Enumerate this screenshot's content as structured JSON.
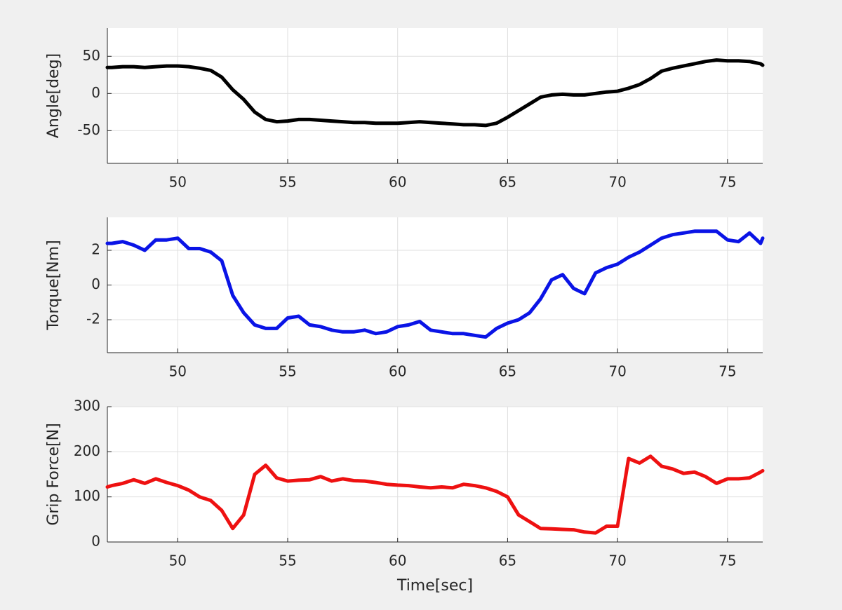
{
  "chart_data": [
    {
      "type": "line",
      "ylabel": "Angle[deg]",
      "xlim": [
        46.8,
        76.6
      ],
      "ylim": [
        -94,
        88
      ],
      "xticks": [
        50,
        55,
        60,
        65,
        70,
        75
      ],
      "yticks": [
        -50,
        0,
        50
      ],
      "grid": true,
      "x": [
        46.8,
        47,
        47.5,
        48,
        48.5,
        49,
        49.5,
        50,
        50.5,
        51,
        51.5,
        52,
        52.5,
        53,
        53.5,
        54,
        54.5,
        55,
        55.5,
        56,
        56.5,
        57,
        57.5,
        58,
        58.5,
        59,
        59.5,
        60,
        60.5,
        61,
        61.5,
        62,
        62.5,
        63,
        63.5,
        64,
        64.5,
        65,
        65.5,
        66,
        66.5,
        67,
        67.5,
        68,
        68.5,
        69,
        69.5,
        70,
        70.5,
        71,
        71.5,
        72,
        72.5,
        73,
        73.5,
        74,
        74.5,
        75,
        75.5,
        76,
        76.5,
        76.6
      ],
      "series": [
        {
          "color": "#000000",
          "values": [
            35,
            35,
            36,
            36,
            35,
            36,
            37,
            37,
            36,
            34,
            31,
            22,
            5,
            -8,
            -25,
            -35,
            -38,
            -37,
            -35,
            -35,
            -36,
            -37,
            -38,
            -39,
            -39,
            -40,
            -40,
            -40,
            -39,
            -38,
            -39,
            -40,
            -41,
            -42,
            -42,
            -43,
            -40,
            -32,
            -23,
            -14,
            -5,
            -2,
            -1,
            -2,
            -2,
            0,
            2,
            3,
            7,
            12,
            20,
            30,
            34,
            37,
            40,
            43,
            45,
            44,
            44,
            43,
            40,
            38
          ]
        }
      ]
    },
    {
      "type": "line",
      "ylabel": "Torque[Nm]",
      "xlim": [
        46.8,
        76.6
      ],
      "ylim": [
        -3.9,
        3.9
      ],
      "xticks": [
        50,
        55,
        60,
        65,
        70,
        75
      ],
      "yticks": [
        -2,
        0,
        2
      ],
      "grid": true,
      "x": [
        46.8,
        47,
        47.5,
        48,
        48.5,
        49,
        49.5,
        50,
        50.5,
        51,
        51.5,
        52,
        52.5,
        53,
        53.5,
        54,
        54.5,
        55,
        55.5,
        56,
        56.5,
        57,
        57.5,
        58,
        58.5,
        59,
        59.5,
        60,
        60.5,
        61,
        61.5,
        62,
        62.5,
        63,
        63.5,
        64,
        64.5,
        65,
        65.5,
        66,
        66.5,
        67,
        67.5,
        68,
        68.5,
        69,
        69.5,
        70,
        70.5,
        71,
        71.5,
        72,
        72.5,
        73,
        73.5,
        74,
        74.5,
        75,
        75.5,
        76,
        76.5,
        76.6
      ],
      "series": [
        {
          "color": "#0a14e6",
          "values": [
            2.4,
            2.4,
            2.5,
            2.3,
            2.0,
            2.6,
            2.6,
            2.7,
            2.1,
            2.1,
            1.9,
            1.4,
            -0.6,
            -1.6,
            -2.3,
            -2.5,
            -2.5,
            -1.9,
            -1.8,
            -2.3,
            -2.4,
            -2.6,
            -2.7,
            -2.7,
            -2.6,
            -2.8,
            -2.7,
            -2.4,
            -2.3,
            -2.1,
            -2.6,
            -2.7,
            -2.8,
            -2.8,
            -2.9,
            -3.0,
            -2.5,
            -2.2,
            -2.0,
            -1.6,
            -0.8,
            0.3,
            0.6,
            -0.2,
            -0.5,
            0.7,
            1.0,
            1.2,
            1.6,
            1.9,
            2.3,
            2.7,
            2.9,
            3.0,
            3.1,
            3.1,
            3.1,
            2.6,
            2.5,
            3.0,
            2.4,
            2.7
          ]
        }
      ]
    },
    {
      "type": "line",
      "ylabel": "Grip Force[N]",
      "xlabel": "Time[sec]",
      "xlim": [
        46.8,
        76.6
      ],
      "ylim": [
        0,
        300
      ],
      "xticks": [
        50,
        55,
        60,
        65,
        70,
        75
      ],
      "yticks": [
        0,
        100,
        200,
        300
      ],
      "grid": true,
      "x": [
        46.8,
        47,
        47.5,
        48,
        48.5,
        49,
        49.5,
        50,
        50.5,
        51,
        51.5,
        52,
        52.5,
        53,
        53.5,
        54,
        54.5,
        55,
        55.5,
        56,
        56.5,
        57,
        57.5,
        58,
        58.5,
        59,
        59.5,
        60,
        60.5,
        61,
        61.5,
        62,
        62.5,
        63,
        63.5,
        64,
        64.5,
        65,
        65.5,
        66,
        66.5,
        67,
        67.5,
        68,
        68.5,
        69,
        69.5,
        70,
        70.5,
        71,
        71.5,
        72,
        72.5,
        73,
        73.5,
        74,
        74.5,
        75,
        75.5,
        76,
        76.5,
        76.6
      ],
      "series": [
        {
          "color": "#ee1111",
          "values": [
            122,
            125,
            130,
            138,
            130,
            140,
            132,
            125,
            115,
            100,
            92,
            70,
            30,
            60,
            150,
            170,
            142,
            135,
            137,
            138,
            145,
            135,
            140,
            136,
            135,
            132,
            128,
            126,
            125,
            122,
            120,
            122,
            120,
            128,
            125,
            120,
            112,
            100,
            60,
            45,
            30,
            29,
            28,
            27,
            22,
            20,
            35,
            35,
            185,
            175,
            190,
            168,
            162,
            152,
            155,
            145,
            130,
            140,
            140,
            142,
            155,
            158
          ]
        }
      ]
    }
  ]
}
